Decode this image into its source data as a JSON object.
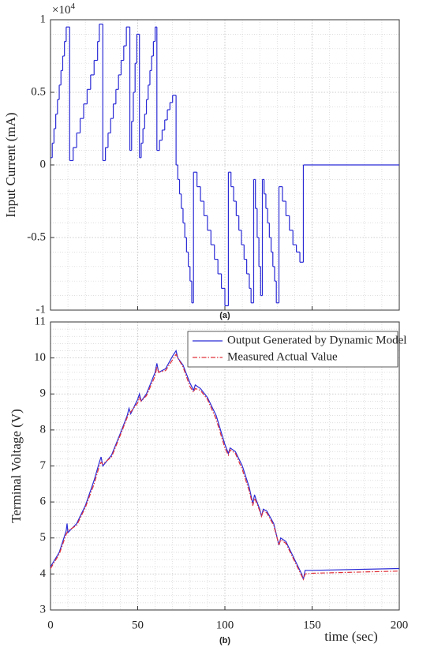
{
  "chart_data": [
    {
      "type": "line",
      "step": "post",
      "ylabel": "Input Current (mA)",
      "multiplier": "×10",
      "multiplier_power": "4",
      "annotation": "(a)",
      "xlim": [
        0,
        200
      ],
      "xticks": [
        0,
        50,
        100,
        150,
        200
      ],
      "ylim": [
        -1,
        1
      ],
      "yticks": [
        -1,
        -0.5,
        0,
        0.5,
        1
      ],
      "grid": true,
      "minor_grid": true,
      "x": [
        0,
        1,
        2,
        3,
        4,
        5,
        6,
        7,
        8,
        9,
        11,
        13,
        15,
        17,
        19,
        21,
        23,
        25,
        27,
        28,
        30,
        31.5,
        33,
        34.5,
        36,
        37.5,
        39,
        40.5,
        42,
        43.5,
        45.5,
        46.5,
        47.5,
        48.5,
        49.5,
        51,
        52,
        53,
        54,
        55,
        56,
        57,
        58,
        59,
        60,
        61,
        62.5,
        64,
        65.5,
        67,
        68.5,
        70,
        72,
        73,
        74,
        75,
        76,
        77,
        78,
        79,
        80,
        81,
        82,
        84,
        86,
        88,
        90,
        92,
        94,
        96,
        98,
        100,
        102,
        103.5,
        105,
        106.5,
        108,
        109.5,
        111,
        112.5,
        114,
        115,
        116.5,
        117.5,
        118.5,
        119.5,
        120.5,
        121.5,
        122.5,
        123.5,
        124.5,
        125.5,
        126.5,
        127.5,
        128.5,
        129.5,
        131,
        133,
        135,
        137,
        139,
        141,
        143,
        145,
        200
      ],
      "series": [
        {
          "color": "#2b2bd6",
          "values": [
            0.05,
            0.15,
            0.25,
            0.35,
            0.45,
            0.55,
            0.65,
            0.75,
            0.85,
            0.95,
            0.03,
            0.12,
            0.22,
            0.32,
            0.42,
            0.52,
            0.62,
            0.72,
            0.85,
            0.97,
            0.03,
            0.12,
            0.22,
            0.32,
            0.42,
            0.52,
            0.62,
            0.72,
            0.82,
            0.95,
            0.1,
            0.3,
            0.5,
            0.7,
            0.9,
            0.05,
            0.15,
            0.25,
            0.35,
            0.45,
            0.55,
            0.65,
            0.75,
            0.85,
            0.95,
            0.1,
            0.17,
            0.24,
            0.31,
            0.38,
            0.43,
            0.48,
            0,
            -0.1,
            -0.2,
            -0.3,
            -0.4,
            -0.5,
            -0.6,
            -0.7,
            -0.8,
            -0.95,
            -0.05,
            -0.15,
            -0.25,
            -0.35,
            -0.45,
            -0.55,
            -0.65,
            -0.75,
            -0.85,
            -0.97,
            -0.05,
            -0.15,
            -0.25,
            -0.35,
            -0.45,
            -0.55,
            -0.65,
            -0.75,
            -0.85,
            -0.95,
            -0.1,
            -0.3,
            -0.5,
            -0.7,
            -0.9,
            -0.1,
            -0.2,
            -0.3,
            -0.4,
            -0.5,
            -0.6,
            -0.7,
            -0.8,
            -0.95,
            -0.15,
            -0.25,
            -0.35,
            -0.45,
            -0.55,
            -0.6,
            -0.67,
            0,
            0
          ]
        }
      ]
    },
    {
      "type": "line",
      "xlabel": "time (sec)",
      "ylabel": "Terminal Voltage (V)",
      "annotation": "(b)",
      "xlim": [
        0,
        200
      ],
      "xticks": [
        0,
        50,
        100,
        150,
        200
      ],
      "ylim": [
        3,
        11
      ],
      "yticks": [
        3,
        4,
        5,
        6,
        7,
        8,
        9,
        10,
        11
      ],
      "grid": true,
      "minor_grid": true,
      "legend": "upper right",
      "x": [
        0,
        5,
        9,
        9.5,
        10,
        15,
        20,
        25,
        28,
        29,
        30,
        35,
        40,
        44,
        45,
        46,
        50,
        51,
        52,
        55,
        60,
        61,
        62,
        66,
        70,
        72,
        73,
        76,
        80,
        82,
        83,
        86,
        90,
        95,
        100,
        102,
        103,
        106,
        110,
        114,
        116,
        117,
        118,
        120,
        121,
        122,
        124,
        128,
        131,
        132,
        135,
        140,
        144,
        145,
        146,
        150,
        200
      ],
      "series": [
        {
          "name": "Output Generated by Dynamic Model",
          "color": "#2b2bd6",
          "linestyle": "solid",
          "values": [
            4.2,
            4.6,
            5.2,
            5.4,
            5.15,
            5.4,
            5.9,
            6.6,
            7.1,
            7.25,
            7.0,
            7.3,
            7.9,
            8.4,
            8.6,
            8.45,
            8.85,
            9.0,
            8.8,
            9.0,
            9.6,
            9.85,
            9.6,
            9.7,
            10.05,
            10.2,
            10.0,
            9.8,
            9.3,
            9.1,
            9.25,
            9.15,
            8.9,
            8.4,
            7.6,
            7.35,
            7.5,
            7.4,
            7.0,
            6.4,
            5.95,
            6.2,
            6.05,
            5.8,
            5.6,
            5.8,
            5.75,
            5.4,
            4.8,
            5.0,
            4.9,
            4.4,
            4.0,
            3.85,
            4.1,
            4.1,
            4.15
          ]
        },
        {
          "name": "Measured Actual Value",
          "color": "#e0303a",
          "linestyle": "dashdot",
          "values": [
            4.15,
            4.55,
            5.1,
            5.15,
            5.2,
            5.35,
            5.85,
            6.5,
            7.0,
            7.1,
            7.05,
            7.25,
            7.85,
            8.35,
            8.45,
            8.5,
            8.75,
            8.9,
            8.8,
            8.95,
            9.5,
            9.75,
            9.6,
            9.65,
            9.95,
            10.1,
            10.0,
            9.75,
            9.2,
            9.05,
            9.15,
            9.1,
            8.85,
            8.3,
            7.5,
            7.3,
            7.45,
            7.35,
            6.9,
            6.3,
            5.9,
            6.1,
            6.0,
            5.75,
            5.6,
            5.75,
            5.7,
            5.35,
            4.8,
            4.95,
            4.85,
            4.35,
            3.95,
            3.85,
            4.0,
            4.02,
            4.08
          ]
        }
      ]
    }
  ]
}
